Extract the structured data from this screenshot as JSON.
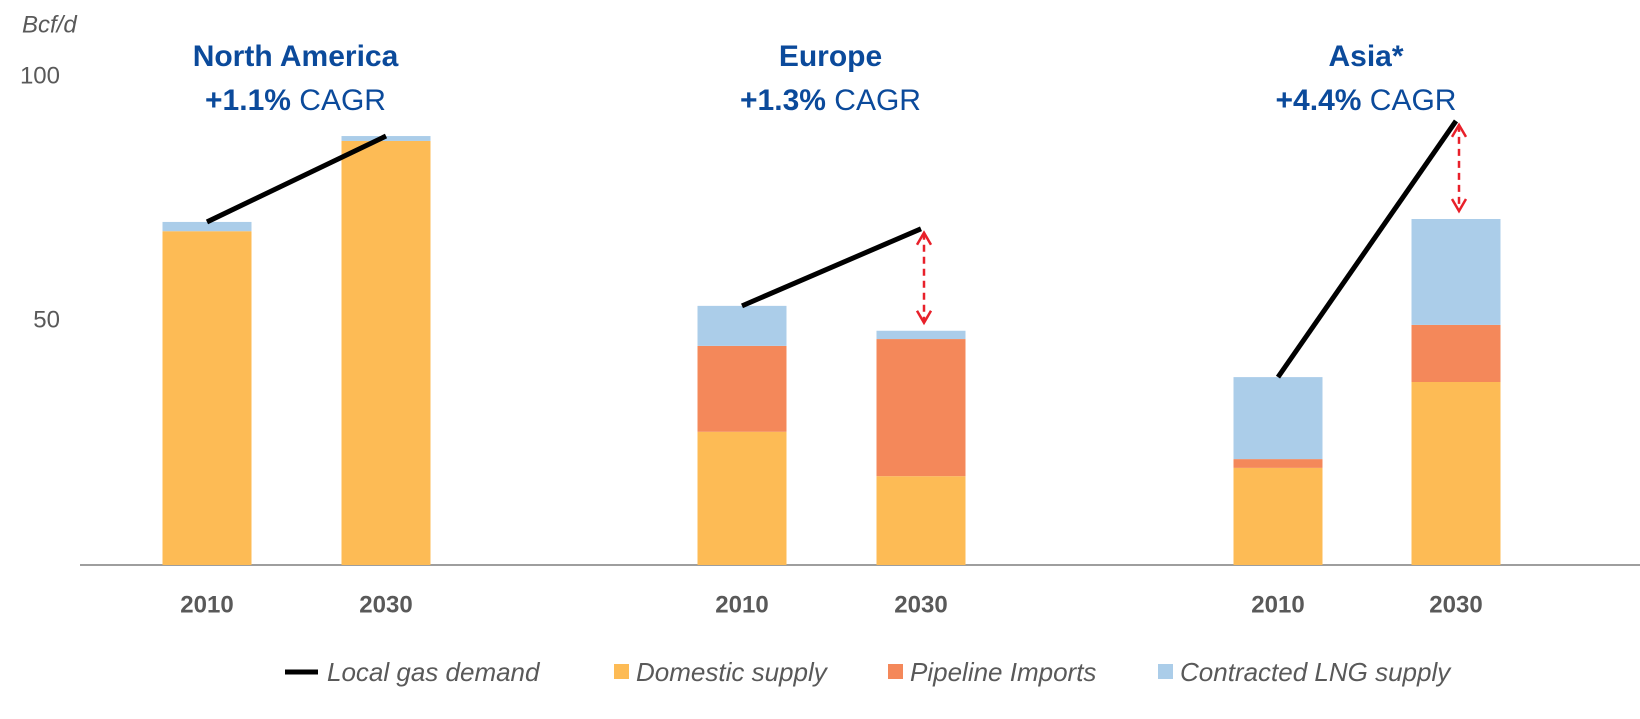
{
  "chart_data": {
    "type": "bar",
    "stacked": true,
    "y_label": "Bcf/d",
    "ylim": [
      0,
      100
    ],
    "yticks": [
      50,
      100
    ],
    "categories": [
      "2010",
      "2030",
      "2010",
      "2030",
      "2010",
      "2030"
    ],
    "groups": [
      {
        "name": "North America",
        "growth": "+1.1%",
        "growth_label": "CAGR"
      },
      {
        "name": "Europe",
        "growth": "+1.3%",
        "growth_label": "CAGR"
      },
      {
        "name": "Asia*",
        "growth": "+4.4%",
        "growth_label": "CAGR"
      }
    ],
    "series": [
      {
        "name": "Local gas demand",
        "type": "line",
        "color": "#000000",
        "values": [
          70.3,
          87.9,
          53.1,
          68.9,
          38.5,
          91.0
        ]
      },
      {
        "name": "Domestic supply",
        "type": "bar",
        "color": "#fdbb55",
        "values": [
          68.4,
          86.9,
          27.3,
          18.2,
          19.9,
          37.5
        ]
      },
      {
        "name": "Pipeline Imports",
        "type": "bar",
        "color": "#f4885a",
        "values": [
          0,
          0,
          17.6,
          28.1,
          1.8,
          11.7
        ]
      },
      {
        "name": "Contracted LNG supply",
        "type": "bar",
        "color": "#abcde9",
        "values": [
          1.9,
          1.0,
          8.2,
          1.7,
          16.8,
          21.7
        ]
      }
    ],
    "legend": "bottom"
  }
}
